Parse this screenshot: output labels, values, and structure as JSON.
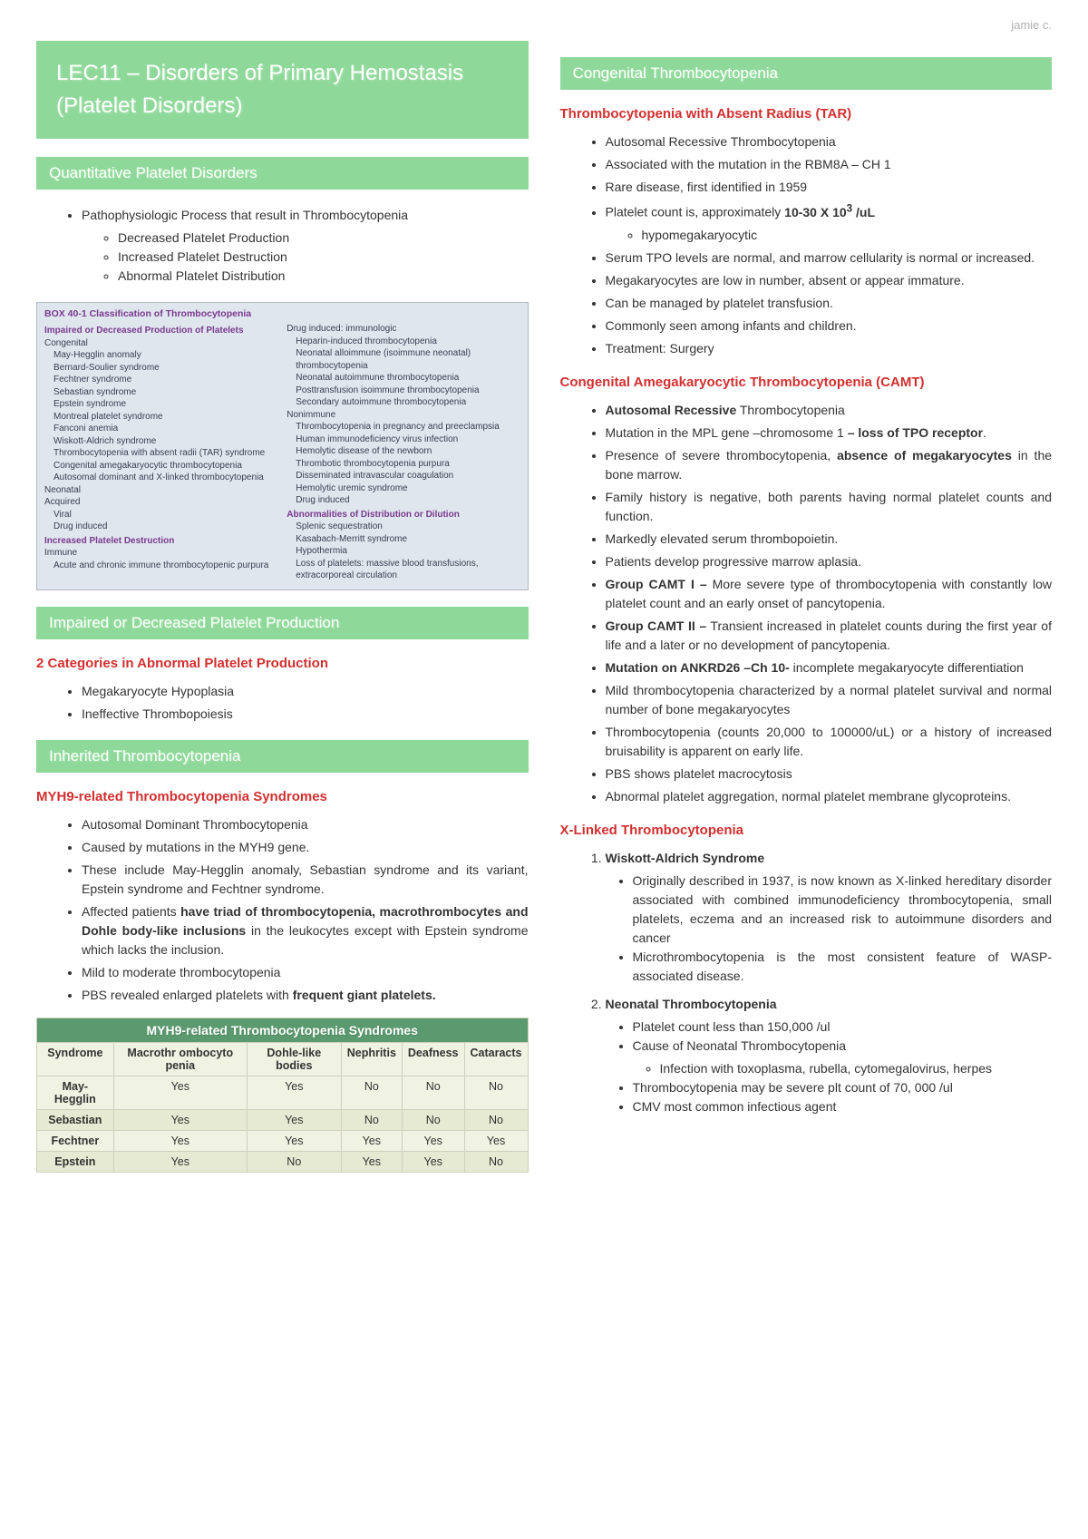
{
  "author": "jamie c.",
  "title": "LEC11 – Disorders of Primary Hemostasis (Platelet Disorders)",
  "left": {
    "sec1": {
      "header": "Quantitative Platelet Disorders",
      "intro": "Pathophysiologic Process that result in Thrombocytopenia",
      "sub": [
        "Decreased Platelet Production",
        "Increased Platelet Destruction",
        "Abnormal Platelet Distribution"
      ]
    },
    "box": {
      "title": "BOX 40-1 Classification of Thrombocytopenia",
      "l_h1": "Impaired or Decreased Production of Platelets",
      "l_congenital": "Congenital",
      "l_cong_items": [
        "May-Hegglin anomaly",
        "Bernard-Soulier syndrome",
        "Fechtner syndrome",
        "Sebastian syndrome",
        "Epstein syndrome",
        "Montreal platelet syndrome",
        "Fanconi anemia",
        "Wiskott-Aldrich syndrome",
        "Thrombocytopenia with absent radii (TAR) syndrome",
        "Congenital amegakaryocytic thrombocytopenia",
        "Autosomal dominant and X-linked thrombocytopenia"
      ],
      "l_neonatal": "Neonatal",
      "l_acquired": "Acquired",
      "l_acq_items": [
        "Viral",
        "Drug induced"
      ],
      "l_h2": "Increased Platelet Destruction",
      "l_immune": "Immune",
      "l_immune_items": [
        "Acute and chronic immune thrombocytopenic purpura"
      ],
      "r_drug": "Drug induced: immunologic",
      "r_drug_items": [
        "Heparin-induced thrombocytopenia",
        "Neonatal alloimmune (isoimmune neonatal) thrombocytopenia",
        "Neonatal autoimmune thrombocytopenia",
        "Posttransfusion isoimmune thrombocytopenia",
        "Secondary autoimmune thrombocytopenia"
      ],
      "r_nonimm": "Nonimmune",
      "r_nonimm_items": [
        "Thrombocytopenia in pregnancy and preeclampsia",
        "Human immunodeficiency virus infection",
        "Hemolytic disease of the newborn",
        "Thrombotic thrombocytopenia purpura",
        "Disseminated intravascular coagulation",
        "Hemolytic uremic syndrome",
        "Drug induced"
      ],
      "r_h1": "Abnormalities of Distribution or Dilution",
      "r_h1_items": [
        "Splenic sequestration",
        "Kasabach-Merritt syndrome",
        "Hypothermia",
        "Loss of platelets: massive blood transfusions, extracorporeal circulation"
      ]
    },
    "sec2": {
      "header": "Impaired or Decreased Platelet Production",
      "sub": "2 Categories in Abnormal Platelet Production",
      "items": [
        "Megakaryocyte Hypoplasia",
        "Ineffective Thrombopoiesis"
      ]
    },
    "sec3": {
      "header": "Inherited Thrombocytopenia",
      "sub": "MYH9-related Thrombocytopenia Syndromes",
      "items": [
        "Autosomal Dominant Thrombocytopenia",
        "Caused by mutations in the MYH9 gene.",
        "These include May-Hegglin anomaly, Sebastian syndrome and its variant, Epstein syndrome and Fechtner syndrome.",
        {
          "html": "Affected patients <b>have triad of thrombocytopenia, macrothrombocytes and Dohle body-like inclusions</b> in the leukocytes except with Epstein syndrome which lacks the inclusion."
        },
        "Mild to moderate thrombocytopenia",
        {
          "html": "PBS revealed enlarged platelets with <b>frequent giant platelets.</b>"
        }
      ]
    },
    "table": {
      "caption": "MYH9-related Thrombocytopenia Syndromes",
      "columns": [
        "Syndrome",
        "Macrothr ombocyto penia",
        "Dohle-like bodies",
        "Nephritis",
        "Deafness",
        "Cataracts"
      ],
      "rows": [
        [
          "May-Hegglin",
          "Yes",
          "Yes",
          "No",
          "No",
          "No"
        ],
        [
          "Sebastian",
          "Yes",
          "Yes",
          "No",
          "No",
          "No"
        ],
        [
          "Fechtner",
          "Yes",
          "Yes",
          "Yes",
          "Yes",
          "Yes"
        ],
        [
          "Epstein",
          "Yes",
          "No",
          "Yes",
          "Yes",
          "No"
        ]
      ]
    }
  },
  "right": {
    "sec1": {
      "header": "Congenital Thrombocytopenia"
    },
    "tar": {
      "title": "Thrombocytopenia with Absent Radius (TAR)",
      "items": [
        "Autosomal Recessive Thrombocytopenia",
        "Associated with the mutation in the RBM8A – CH 1",
        "Rare disease, first identified in 1959",
        {
          "html": "Platelet count is, approximately <b>10-30 X 10<sup>3</sup> /uL</b>",
          "sub": [
            "hypomegakaryocytic"
          ]
        },
        "Serum TPO levels are normal, and marrow cellularity is normal or increased.",
        "Megakaryocytes are low in number, absent or appear immature.",
        "Can be managed by platelet transfusion.",
        "Commonly seen among infants and children.",
        "Treatment: Surgery"
      ]
    },
    "camt": {
      "title": "Congenital Amegakaryocytic Thrombocytopenia (CAMT)",
      "items": [
        {
          "html": "<b>Autosomal Recessive</b> Thrombocytopenia"
        },
        {
          "html": "Mutation in the MPL gene –chromosome 1 <b>– loss of TPO receptor</b>."
        },
        {
          "html": "Presence of severe thrombocytopenia, <b>absence of megakaryocytes</b> in the bone marrow."
        },
        "Family history is negative, both parents having normal platelet counts and function.",
        "Markedly elevated serum thrombopoietin.",
        "Patients develop progressive marrow aplasia.",
        {
          "html": "<b>Group CAMT I –</b> More severe type of thrombocytopenia with constantly low platelet count and an early onset of pancytopenia."
        },
        {
          "html": "<b>Group CAMT II –</b> Transient increased in platelet counts during the first year of life and a later or no development of pancytopenia."
        },
        {
          "html": "<b>Mutation on ANKRD26 –Ch 10-</b> incomplete megakaryocyte differentiation"
        },
        "Mild thrombocytopenia characterized by a normal platelet survival and normal number of bone megakaryocytes",
        "Thrombocytopenia (counts 20,000 to 100000/uL) or a history of increased bruisability is apparent on early life.",
        "PBS shows platelet macrocytosis",
        "Abnormal platelet aggregation, normal platelet membrane glycoproteins."
      ]
    },
    "xlinked": {
      "title": "X-Linked Thrombocytopenia",
      "ol": [
        {
          "title": "Wiskott-Aldrich Syndrome",
          "items": [
            "Originally described in 1937, is now known as X-linked hereditary disorder associated with combined immunodeficiency thrombocytopenia, small platelets, eczema and an increased risk to autoimmune disorders and cancer",
            "Microthrombocytopenia is the most consistent feature of WASP-associated disease."
          ]
        },
        {
          "title": "Neonatal Thrombocytopenia",
          "items": [
            "Platelet count less than 150,000 /ul",
            {
              "text": "Cause of Neonatal Thrombocytopenia",
              "sub": [
                "Infection with toxoplasma, rubella, cytomegalovirus, herpes"
              ]
            },
            "Thrombocytopenia may be severe plt count of 70, 000 /ul",
            "CMV most common infectious agent"
          ]
        }
      ]
    }
  }
}
